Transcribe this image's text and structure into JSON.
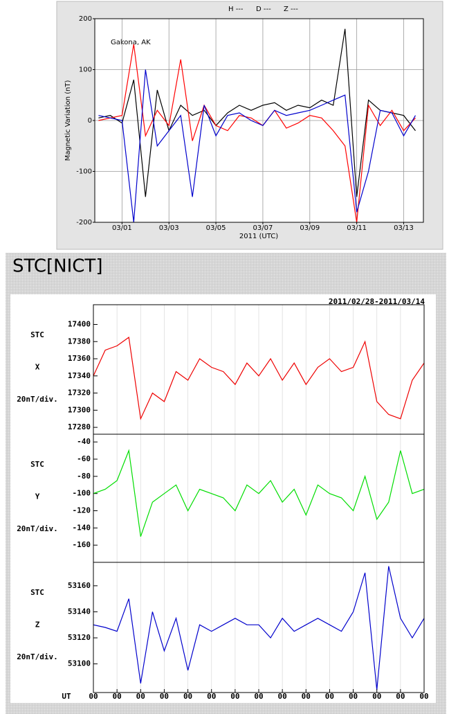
{
  "chart_data": [
    {
      "type": "line",
      "annotation": "Gakona, AK",
      "x_label": "2011 (UTC)",
      "y_label": "Magnetic Variation (nT)",
      "x": [
        0,
        0.5,
        1,
        1.5,
        2,
        2.5,
        3,
        3.5,
        4,
        4.5,
        5,
        5.5,
        6,
        6.5,
        7,
        7.5,
        8,
        8.5,
        9,
        9.5,
        10,
        10.5,
        11,
        11.5,
        12,
        12.5,
        13,
        13.5
      ],
      "xlim": [
        -0.16,
        13.84
      ],
      "xticks": [
        {
          "value": 1,
          "label": "03/01"
        },
        {
          "value": 3,
          "label": "03/03"
        },
        {
          "value": 5,
          "label": "03/05"
        },
        {
          "value": 7,
          "label": "03/07"
        },
        {
          "value": 9,
          "label": "03/09"
        },
        {
          "value": 11,
          "label": "03/11"
        },
        {
          "value": 13,
          "label": "03/13"
        }
      ],
      "ylim": [
        -200,
        200
      ],
      "yticks": [
        -200,
        -100,
        0,
        100,
        200
      ],
      "grid": true,
      "series": [
        {
          "name": "H ---",
          "color": "#000000",
          "values": [
            5,
            10,
            -5,
            80,
            -150,
            60,
            -20,
            30,
            10,
            20,
            -10,
            15,
            30,
            20,
            30,
            35,
            20,
            30,
            25,
            40,
            30,
            180,
            -150,
            40,
            20,
            15,
            10,
            -20
          ]
        },
        {
          "name": "D ---",
          "color": "#ff0000",
          "values": [
            0,
            5,
            10,
            150,
            -30,
            20,
            -10,
            120,
            -40,
            30,
            -10,
            -20,
            10,
            5,
            -10,
            20,
            -15,
            -5,
            10,
            5,
            -20,
            -50,
            -200,
            30,
            -10,
            20,
            -20,
            5
          ]
        },
        {
          "name": "Z ---",
          "color": "#0000cc",
          "values": [
            10,
            5,
            0,
            -200,
            100,
            -50,
            -20,
            10,
            -150,
            30,
            -30,
            10,
            15,
            0,
            -10,
            20,
            10,
            15,
            20,
            30,
            40,
            50,
            -180,
            -100,
            20,
            15,
            -30,
            10
          ]
        }
      ]
    },
    {
      "type": "panels",
      "title": "STC[NICT]",
      "subtitle": "2011/02/28-2011/03/14",
      "x_label": "UT",
      "x": [
        0,
        0.5,
        1,
        1.5,
        2,
        2.5,
        3,
        3.5,
        4,
        4.5,
        5,
        5.5,
        6,
        6.5,
        7,
        7.5,
        8,
        8.5,
        9,
        9.5,
        10,
        10.5,
        11,
        11.5,
        12,
        12.5,
        13,
        13.5,
        14
      ],
      "xlim": [
        0,
        14
      ],
      "xticks": [
        {
          "value": 0,
          "label": "00"
        },
        {
          "value": 1,
          "label": "00"
        },
        {
          "value": 2,
          "label": "00"
        },
        {
          "value": 3,
          "label": "00"
        },
        {
          "value": 4,
          "label": "00"
        },
        {
          "value": 5,
          "label": "00"
        },
        {
          "value": 6,
          "label": "00"
        },
        {
          "value": 7,
          "label": "00"
        },
        {
          "value": 8,
          "label": "00"
        },
        {
          "value": 9,
          "label": "00"
        },
        {
          "value": 10,
          "label": "00"
        },
        {
          "value": 11,
          "label": "00"
        },
        {
          "value": 12,
          "label": "00"
        },
        {
          "value": 13,
          "label": "00"
        },
        {
          "value": 14,
          "label": "00"
        }
      ],
      "grid": true,
      "panels": [
        {
          "labels": [
            "STC",
            "X",
            "20nT/div."
          ],
          "ylim": [
            17272,
            17423
          ],
          "yticks": [
            17280,
            17300,
            17320,
            17340,
            17360,
            17380,
            17400
          ],
          "color": "#ee0000",
          "values": [
            17340,
            17370,
            17375,
            17385,
            17290,
            17320,
            17310,
            17345,
            17335,
            17360,
            17350,
            17345,
            17330,
            17355,
            17340,
            17360,
            17335,
            17355,
            17330,
            17350,
            17360,
            17345,
            17350,
            17380,
            17310,
            17295,
            17290,
            17335,
            17355
          ]
        },
        {
          "labels": [
            "STC",
            "Y",
            "20nT/div."
          ],
          "ylim": [
            -180,
            -31
          ],
          "yticks": [
            -160,
            -140,
            -120,
            -100,
            -80,
            -60,
            -40
          ],
          "color": "#00dd00",
          "values": [
            -100,
            -95,
            -85,
            -50,
            -150,
            -110,
            -100,
            -90,
            -120,
            -95,
            -100,
            -105,
            -120,
            -90,
            -100,
            -85,
            -110,
            -95,
            -125,
            -90,
            -100,
            -105,
            -120,
            -80,
            -130,
            -110,
            -50,
            -100,
            -95
          ]
        },
        {
          "labels": [
            "STC",
            "Z",
            "20nT/div."
          ],
          "ylim": [
            53078,
            53178
          ],
          "yticks": [
            53100,
            53120,
            53140,
            53160
          ],
          "color": "#0000cc",
          "values": [
            53130,
            53128,
            53125,
            53150,
            53085,
            53140,
            53110,
            53135,
            53095,
            53130,
            53125,
            53130,
            53135,
            53130,
            53130,
            53120,
            53135,
            53125,
            53130,
            53135,
            53130,
            53125,
            53140,
            53170,
            53080,
            53175,
            53135,
            53120,
            53135
          ]
        }
      ]
    }
  ]
}
